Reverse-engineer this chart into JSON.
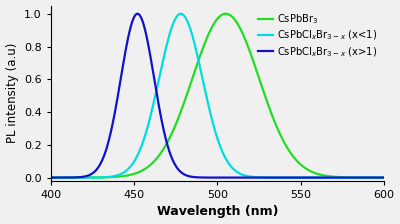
{
  "title": "",
  "xlabel": "Wavelength (nm)",
  "ylabel": "PL intensity (a.u)",
  "xlim": [
    400,
    600
  ],
  "ylim": [
    -0.02,
    1.05
  ],
  "yticks": [
    0.0,
    0.2,
    0.4,
    0.6,
    0.8,
    1.0
  ],
  "xticks": [
    400,
    450,
    500,
    550,
    600
  ],
  "peaks": [
    505,
    478,
    452
  ],
  "sigmas": [
    20,
    13,
    10
  ],
  "colors": [
    "#22dd22",
    "#00dddd",
    "#1111cc"
  ],
  "labels": [
    "CsPbBr$_3$",
    "CsPbCl$_x$Br$_{3-x}$ (x<1)",
    "CsPbCl$_x$Br$_{3-x}$ (x>1)"
  ],
  "background_color": "#f0f0f0",
  "line_width": 1.6,
  "figsize": [
    4.0,
    2.24
  ],
  "dpi": 100
}
